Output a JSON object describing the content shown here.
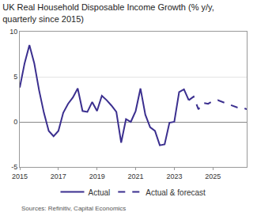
{
  "chart_data": {
    "type": "line",
    "title": "UK Real Household Disposable Income Growth (% y/y, quarterly since 2015)",
    "source": "Sources: Refinitiv, Capital Economics",
    "categories": [
      "2015",
      null,
      null,
      null,
      null,
      null,
      null,
      null,
      "2017",
      null,
      null,
      null,
      null,
      null,
      null,
      null,
      "2019",
      null,
      null,
      null,
      null,
      null,
      null,
      null,
      "2021",
      null,
      null,
      null,
      null,
      null,
      null,
      null,
      "2023",
      null,
      null,
      null,
      null,
      null,
      null,
      null,
      "2025",
      null,
      null,
      null,
      null,
      null,
      null,
      null
    ],
    "series": [
      {
        "name": "Actual",
        "color": "#3b2f8f",
        "line_style": "solid",
        "values": [
          3.8,
          6.5,
          8.5,
          6.5,
          3.5,
          1.0,
          -1.0,
          -1.6,
          -1.0,
          1.0,
          2.0,
          2.7,
          3.7,
          1.2,
          1.1,
          2.2,
          1.2,
          2.9,
          2.4,
          1.8,
          1.1,
          -2.3,
          0.3,
          0.0,
          1.2,
          3.7,
          0.8,
          -0.6,
          -1.0,
          -2.6,
          -2.5,
          -0.1,
          0.0,
          3.3,
          3.6,
          2.4,
          null,
          null,
          null,
          null,
          null,
          null,
          null,
          null,
          null,
          null,
          null,
          null
        ]
      },
      {
        "name": "Actual & forecast",
        "color": "#3b2f8f",
        "line_style": "dashed",
        "values": [
          null,
          null,
          null,
          null,
          null,
          null,
          null,
          null,
          null,
          null,
          null,
          null,
          null,
          null,
          null,
          null,
          null,
          null,
          null,
          null,
          null,
          null,
          null,
          null,
          null,
          null,
          null,
          null,
          null,
          null,
          null,
          null,
          null,
          null,
          null,
          2.4,
          2.8,
          1.4,
          2.1,
          2.0,
          2.3,
          2.4,
          2.2,
          2.0,
          1.8,
          1.6,
          1.6,
          1.4
        ]
      }
    ],
    "ylim": [
      -5,
      10
    ],
    "yticks": [
      -5,
      0,
      5,
      10
    ],
    "grid": true,
    "legend": "bottom"
  }
}
